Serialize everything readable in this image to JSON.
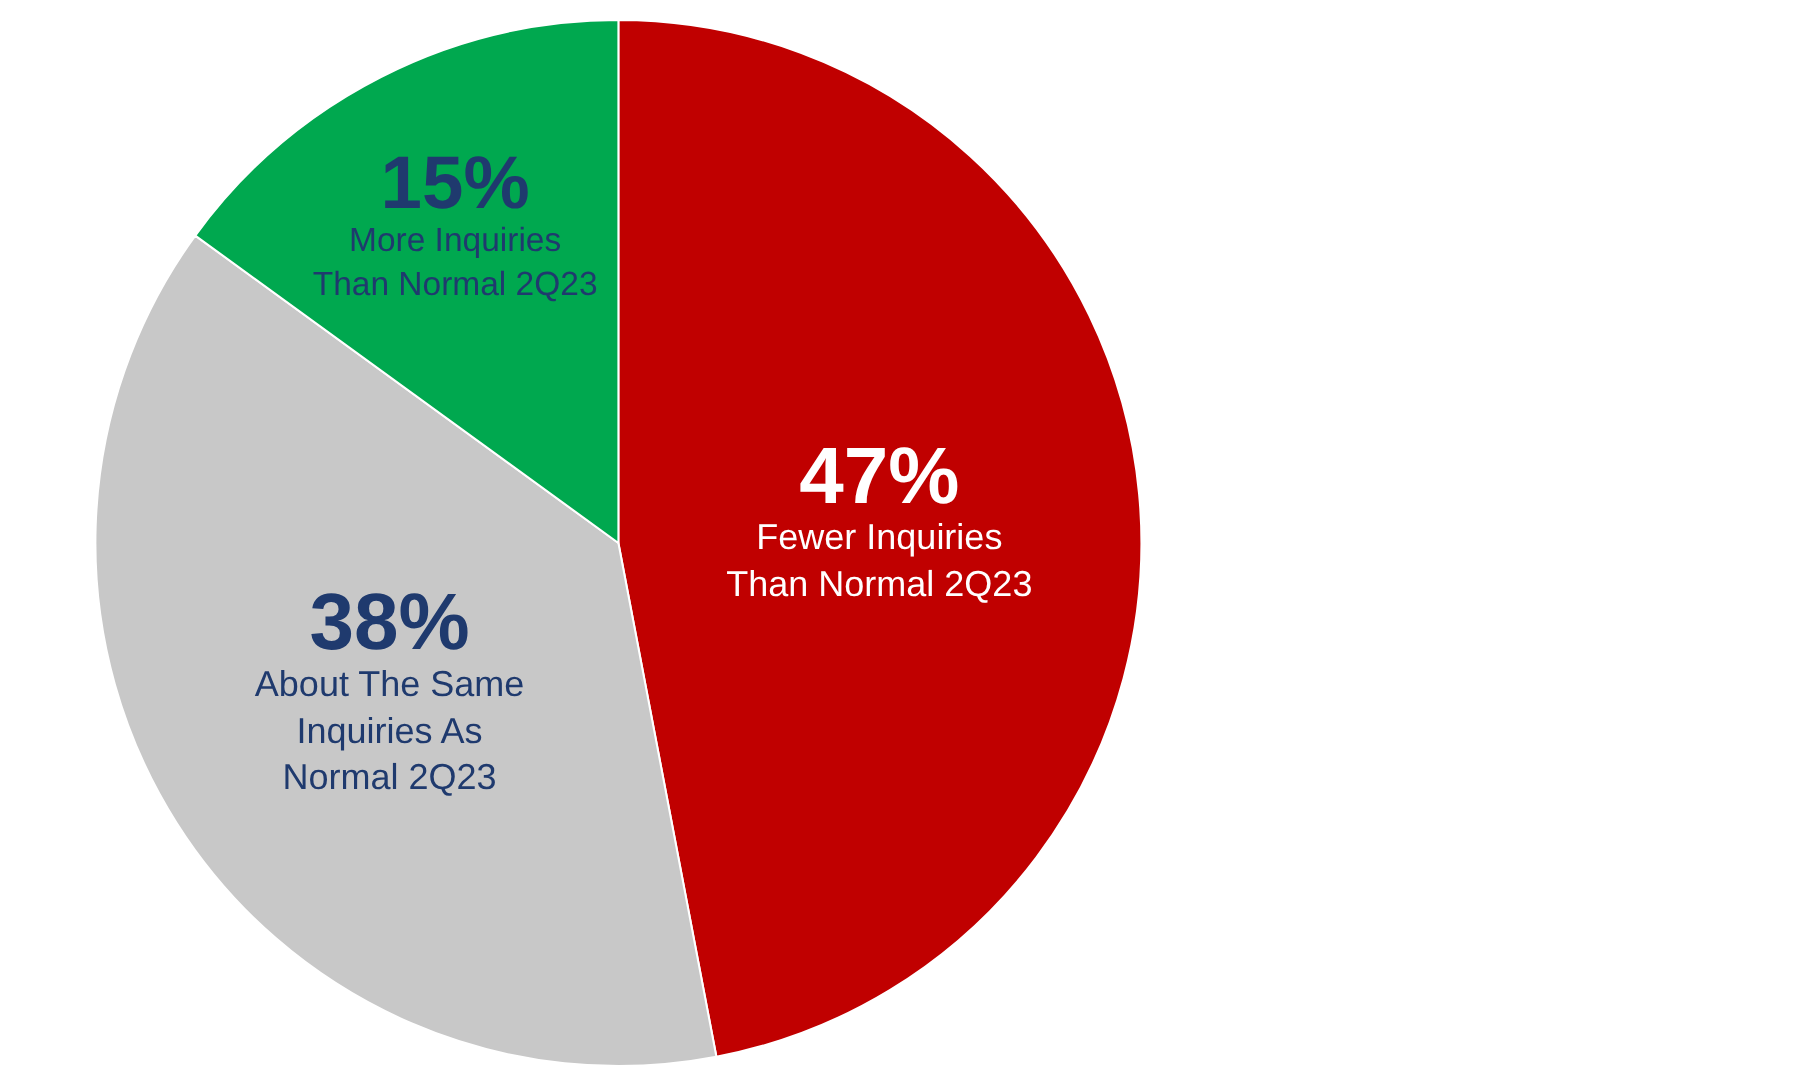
{
  "chart_data": {
    "type": "pie",
    "categories": [
      "Fewer Inquiries Than Normal 2Q23",
      "About The Same Inquiries As Normal 2Q23",
      "More Inquiries Than Normal 2Q23"
    ],
    "values": [
      47,
      38,
      15
    ],
    "value_labels": [
      "47%",
      "38%",
      "15%"
    ],
    "colors": [
      "#c00000",
      "#c8c8c8",
      "#00a84f"
    ],
    "legend": false
  }
}
